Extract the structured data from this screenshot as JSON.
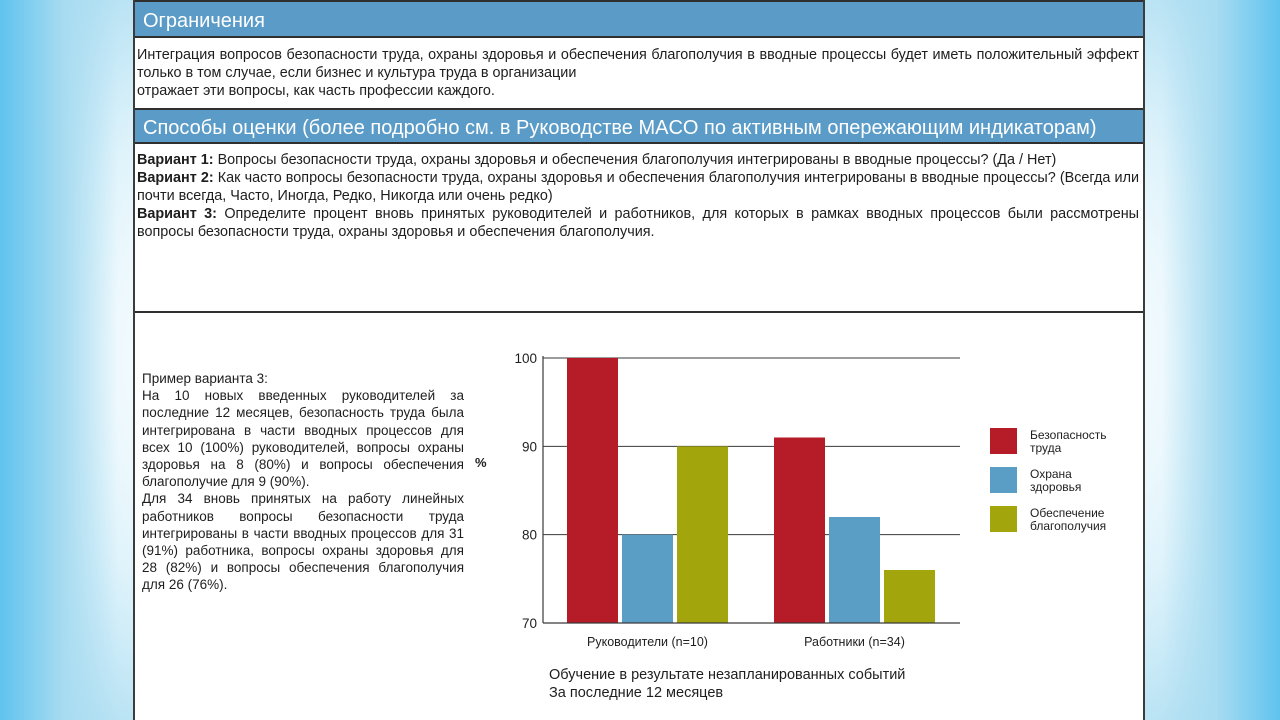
{
  "sections": {
    "limits": {
      "title": "Ограничения",
      "text_line1": " Интеграция вопросов безопасности труда, охраны здоровья и обеспечения благополучия в вводные процессы  будет иметь положительный эффект только в том случае, если бизнес и культура труда в организации",
      "text_line2": "отражает эти вопросы, как часть профессии каждого."
    },
    "methods": {
      "title": "Способы оценки (более подробно см. в Руководстве MACO по активным опережающим индикаторам)",
      "variants": [
        {
          "label": "Вариант 1:",
          "text": " Вопросы безопасности труда, охраны здоровья и обеспечения благополучия интегрированы  в вводные процессы? (Да / Нет)"
        },
        {
          "label": "Вариант 2:",
          "text": " Как часто вопросы безопасности труда, охраны здоровья и обеспечения благополучия интегрированы  в вводные процессы? (Всегда или почти всегда, Часто, Иногда, Редко, Никогда или очень редко)"
        },
        {
          "label": "Вариант 3:",
          "text": " Определите процент вновь принятых руководителей и работников, для которых в рамках вводных процессов  были рассмотрены вопросы безопасности труда, охраны здоровья и обеспечения благополучия."
        }
      ]
    },
    "example": {
      "heading": "Пример варианта 3:",
      "para1": "На 10 новых введенных руководителей за последние 12 месяцев, безопасность труда была интегрирована в части вводных процессов для всех 10 (100%) руководителей, вопросы охраны здоровья на 8 (80%) и вопросы обеспечения благополучие для 9 (90%).",
      "para2": "Для 34 вновь принятых на работу линейных работников вопросы безопасности труда интегрированы в части вводных процессов для 31 (91%) работника, вопросы охраны здоровья для 28 (82%) и вопросы обеспечения благополучия для 26 (76%)."
    }
  },
  "chart_data": {
    "type": "bar",
    "categories": [
      "Руководители (n=10)",
      "Работники (n=34)"
    ],
    "series": [
      {
        "name": "Безопасность труда",
        "values": [
          100,
          91
        ],
        "color": "#b51c27"
      },
      {
        "name": "Охрана здоровья",
        "values": [
          80,
          82
        ],
        "color": "#5a9ec5"
      },
      {
        "name": "Обеспечение благополучия",
        "values": [
          90,
          76
        ],
        "color": "#a3a50d"
      }
    ],
    "legend_lines": [
      [
        "Безопасность",
        "труда"
      ],
      [
        "Охрана",
        "здоровья"
      ],
      [
        "Обеспечение",
        "благополучия"
      ]
    ],
    "ylabel": "%",
    "ylim": [
      70,
      100
    ],
    "yticks": [
      70,
      80,
      90,
      100
    ],
    "grid": true,
    "legend_position": "right",
    "caption_line1": "Обучение в результате незапланированных событий",
    "caption_line2": "За последние 12 месяцев"
  }
}
